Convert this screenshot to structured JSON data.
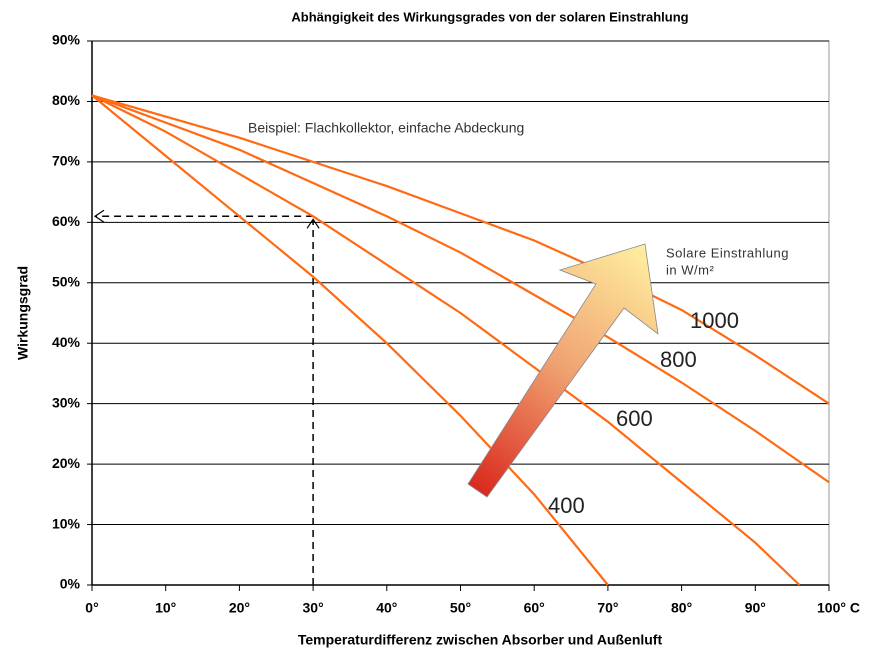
{
  "chart_data": {
    "type": "line",
    "title": "Abhängigkeit des Wirkungsgrades von der solaren Einstrahlung",
    "x_label": "Temperaturdifferenz zwischen Absorber und Außenluft",
    "y_label": "Wirkungsgrad",
    "annotations": [
      "Beispiel: Flachkollektor, einfache Abdeckung",
      "Solare Einstrahlung",
      "in W/m²"
    ],
    "xlim": [
      0,
      100
    ],
    "ylim": [
      0,
      90
    ],
    "xticks": [
      {
        "value": 0,
        "label": "0°"
      },
      {
        "value": 10,
        "label": "10°"
      },
      {
        "value": 20,
        "label": "20°"
      },
      {
        "value": 30,
        "label": "30°"
      },
      {
        "value": 40,
        "label": "40°"
      },
      {
        "value": 50,
        "label": "50°"
      },
      {
        "value": 60,
        "label": "60°"
      },
      {
        "value": 70,
        "label": "70°"
      },
      {
        "value": 80,
        "label": "80°"
      },
      {
        "value": 90,
        "label": "90°"
      },
      {
        "value": 100,
        "label": "100° C"
      }
    ],
    "yticks": [
      {
        "value": 0,
        "label": "0%"
      },
      {
        "value": 10,
        "label": "10%"
      },
      {
        "value": 20,
        "label": "20%"
      },
      {
        "value": 30,
        "label": "30%"
      },
      {
        "value": 40,
        "label": "40%"
      },
      {
        "value": 50,
        "label": "50%"
      },
      {
        "value": 60,
        "label": "60%"
      },
      {
        "value": 70,
        "label": "70%"
      },
      {
        "value": 80,
        "label": "80%"
      },
      {
        "value": 90,
        "label": "90%"
      }
    ],
    "grid": true,
    "reference_point": {
      "x": 30,
      "y": 61
    },
    "series": [
      {
        "name": "400",
        "color": "#ff6a13",
        "x": [
          0,
          10,
          20,
          30,
          40,
          50,
          60,
          70
        ],
        "values": [
          81,
          71,
          61,
          51,
          40,
          28,
          15,
          0
        ]
      },
      {
        "name": "600",
        "color": "#ff6a13",
        "x": [
          0,
          10,
          20,
          30,
          40,
          50,
          60,
          70,
          80,
          90,
          96
        ],
        "values": [
          81,
          75,
          68,
          61,
          53,
          45,
          36,
          27,
          17,
          7,
          0
        ]
      },
      {
        "name": "800",
        "color": "#ff6a13",
        "x": [
          0,
          10,
          20,
          30,
          40,
          50,
          60,
          70,
          80,
          90,
          100
        ],
        "values": [
          81,
          76.5,
          72,
          66.5,
          61,
          55,
          48,
          41,
          33.5,
          25.5,
          17
        ]
      },
      {
        "name": "1000",
        "color": "#ff6a13",
        "x": [
          0,
          10,
          20,
          30,
          40,
          50,
          60,
          70,
          80,
          90,
          100
        ],
        "values": [
          81,
          77.5,
          74,
          70,
          66,
          61.5,
          57,
          51.5,
          45.5,
          38,
          30
        ]
      }
    ]
  }
}
